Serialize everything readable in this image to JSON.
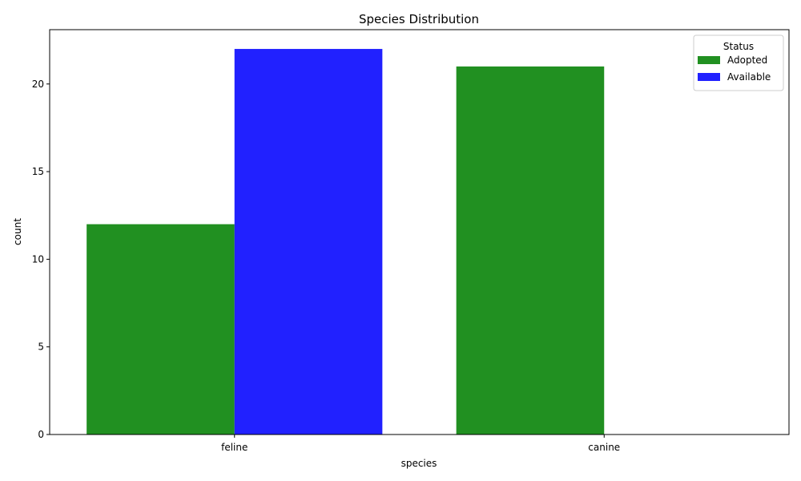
{
  "chart_data": {
    "type": "bar",
    "title": "Species Distribution",
    "xlabel": "species",
    "ylabel": "count",
    "categories": [
      "feline",
      "canine"
    ],
    "series": [
      {
        "name": "Adopted",
        "values": [
          12,
          21
        ],
        "color": "#008000"
      },
      {
        "name": "Available",
        "values": [
          22,
          0
        ],
        "color": "#0000ff"
      }
    ],
    "ylim": [
      0,
      23.1
    ],
    "yticks": [
      0,
      5,
      10,
      15,
      20
    ],
    "legend": {
      "title": "Status",
      "position": "top-right"
    },
    "grid": false
  }
}
